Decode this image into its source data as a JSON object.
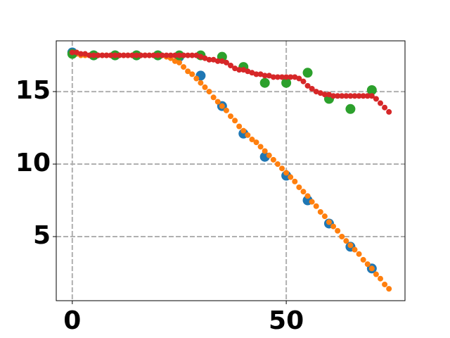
{
  "chart_data": {
    "type": "scatter",
    "xlim": [
      -3.75,
      77.75
    ],
    "ylim": [
      0.58,
      18.5
    ],
    "xticks": [
      0,
      50
    ],
    "yticks": [
      5,
      10,
      15
    ],
    "grid": true,
    "series": [
      {
        "color": "#1f77b4",
        "marker_size": 7,
        "x": [
          0,
          5,
          10,
          15,
          20,
          25,
          30,
          35,
          40,
          45,
          50,
          55,
          60,
          65,
          70
        ],
        "values": [
          17.7,
          17.5,
          17.5,
          17.5,
          17.5,
          17.4,
          16.1,
          14.0,
          12.1,
          10.5,
          9.2,
          7.5,
          5.9,
          4.3,
          2.8
        ]
      },
      {
        "color": "#ff7f0e",
        "marker_size": 4,
        "x": [
          0,
          1,
          2,
          3,
          4,
          5,
          6,
          7,
          8,
          9,
          10,
          11,
          12,
          13,
          14,
          15,
          16,
          17,
          18,
          19,
          20,
          21,
          22,
          23,
          24,
          25,
          26,
          27,
          28,
          29,
          30,
          31,
          32,
          33,
          34,
          35,
          36,
          37,
          38,
          39,
          40,
          41,
          42,
          43,
          44,
          45,
          46,
          47,
          48,
          49,
          50,
          51,
          52,
          53,
          54,
          55,
          56,
          57,
          58,
          59,
          60,
          61,
          62,
          63,
          64,
          65,
          66,
          67,
          68,
          69,
          70,
          71,
          72,
          73,
          74
        ],
        "values": [
          17.6,
          17.6,
          17.5,
          17.5,
          17.5,
          17.5,
          17.5,
          17.5,
          17.5,
          17.5,
          17.5,
          17.5,
          17.5,
          17.5,
          17.5,
          17.5,
          17.5,
          17.5,
          17.5,
          17.5,
          17.5,
          17.5,
          17.4,
          17.3,
          17.1,
          17.0,
          16.7,
          16.4,
          16.2,
          15.9,
          15.6,
          15.3,
          15.0,
          14.6,
          14.3,
          14.0,
          13.7,
          13.3,
          13.0,
          12.6,
          12.3,
          12.0,
          11.7,
          11.5,
          11.2,
          10.9,
          10.6,
          10.3,
          10.0,
          9.7,
          9.4,
          9.1,
          8.8,
          8.4,
          8.1,
          7.8,
          7.4,
          7.1,
          6.7,
          6.4,
          6.0,
          5.7,
          5.4,
          5.0,
          4.7,
          4.4,
          4.1,
          3.8,
          3.4,
          3.1,
          2.8,
          2.4,
          2.1,
          1.7,
          1.4
        ]
      },
      {
        "color": "#2ca02c",
        "marker_size": 7,
        "x": [
          0,
          5,
          10,
          15,
          20,
          25,
          30,
          35,
          40,
          45,
          50,
          55,
          60,
          65,
          70
        ],
        "values": [
          17.6,
          17.5,
          17.5,
          17.5,
          17.5,
          17.5,
          17.5,
          17.4,
          16.7,
          15.6,
          15.6,
          16.3,
          14.5,
          13.8,
          15.1
        ]
      },
      {
        "color": "#d62728",
        "marker_size": 4,
        "x": [
          0,
          1,
          2,
          3,
          4,
          5,
          6,
          7,
          8,
          9,
          10,
          11,
          12,
          13,
          14,
          15,
          16,
          17,
          18,
          19,
          20,
          21,
          22,
          23,
          24,
          25,
          26,
          27,
          28,
          29,
          30,
          31,
          32,
          33,
          34,
          35,
          36,
          37,
          38,
          39,
          40,
          41,
          42,
          43,
          44,
          45,
          46,
          47,
          48,
          49,
          50,
          51,
          52,
          53,
          54,
          55,
          56,
          57,
          58,
          59,
          60,
          61,
          62,
          63,
          64,
          65,
          66,
          67,
          68,
          69,
          70,
          71,
          72,
          73,
          74
        ],
        "values": [
          17.7,
          17.7,
          17.6,
          17.6,
          17.5,
          17.5,
          17.5,
          17.5,
          17.5,
          17.5,
          17.5,
          17.5,
          17.5,
          17.5,
          17.5,
          17.5,
          17.5,
          17.5,
          17.5,
          17.5,
          17.5,
          17.5,
          17.5,
          17.5,
          17.5,
          17.5,
          17.5,
          17.5,
          17.5,
          17.5,
          17.4,
          17.3,
          17.2,
          17.2,
          17.1,
          17.1,
          17.0,
          16.8,
          16.6,
          16.5,
          16.5,
          16.4,
          16.3,
          16.2,
          16.2,
          16.1,
          16.1,
          16.0,
          16.0,
          16.0,
          16.0,
          16.0,
          16.0,
          15.9,
          15.7,
          15.4,
          15.2,
          15.0,
          14.9,
          14.8,
          14.8,
          14.7,
          14.7,
          14.7,
          14.7,
          14.7,
          14.7,
          14.7,
          14.7,
          14.7,
          14.7,
          14.5,
          14.2,
          13.9,
          13.6
        ]
      }
    ]
  }
}
